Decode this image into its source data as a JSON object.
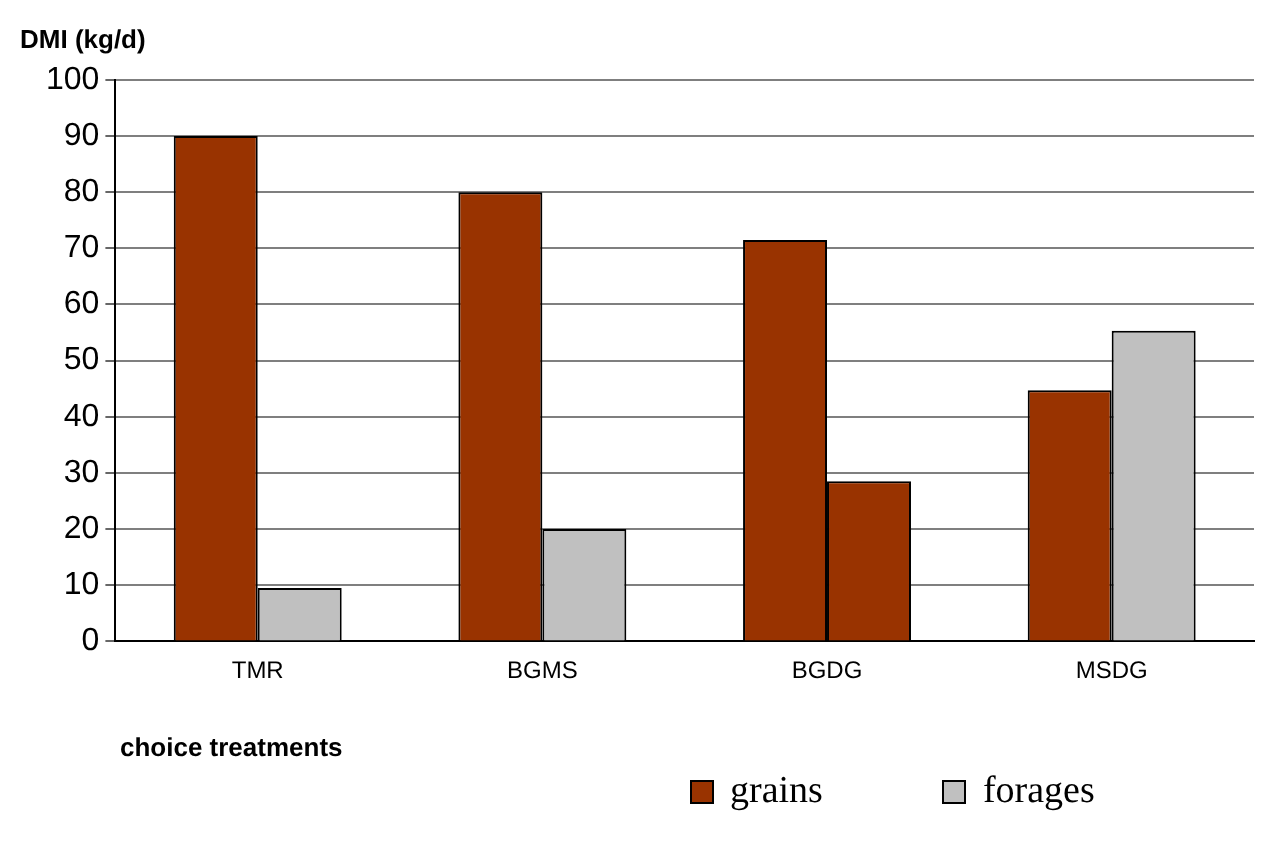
{
  "chart_data": {
    "type": "bar",
    "ylabel": "DMI (kg/d)",
    "xlabel": "choice treatments",
    "categories": [
      "TMR",
      "BGMS",
      "BGDG",
      "MSDG"
    ],
    "series": [
      {
        "name": "grains",
        "color": "#993300",
        "values": [
          90,
          80,
          71.5,
          44.7
        ]
      },
      {
        "name": "forages",
        "color": "#c0c0c0",
        "colors": [
          "#c0c0c0",
          "#c0c0c0",
          "#993300",
          "#c0c0c0"
        ],
        "values": [
          9.5,
          20,
          28.5,
          55.3
        ]
      }
    ],
    "ylim": [
      0,
      100
    ],
    "yticks": [
      0,
      10,
      20,
      30,
      40,
      50,
      60,
      70,
      80,
      90,
      100
    ],
    "grid": "y",
    "legend": "bottom"
  }
}
